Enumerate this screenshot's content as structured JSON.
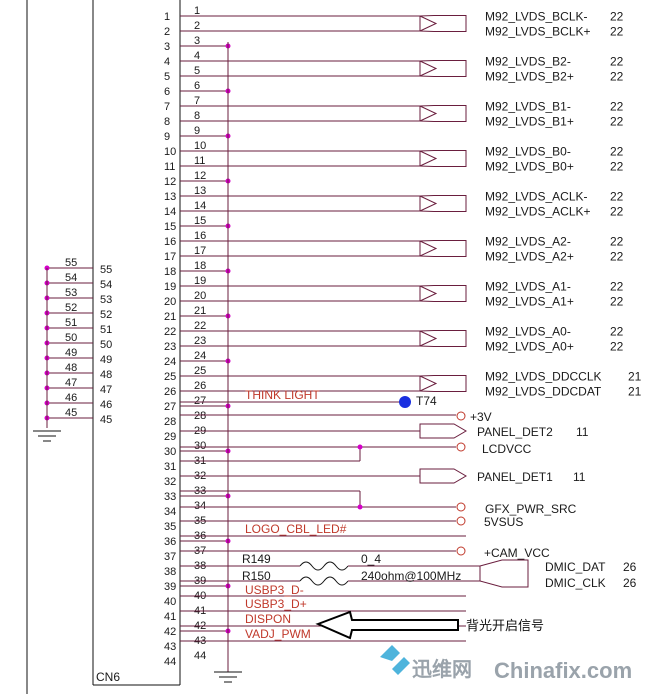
{
  "connector": {
    "ref": "CN6",
    "left_pins": [
      "55",
      "54",
      "53",
      "52",
      "51",
      "50",
      "49",
      "48",
      "47",
      "46",
      "45"
    ],
    "right_pins": [
      "1",
      "2",
      "3",
      "4",
      "5",
      "6",
      "7",
      "8",
      "9",
      "10",
      "11",
      "12",
      "13",
      "14",
      "15",
      "16",
      "17",
      "18",
      "19",
      "20",
      "21",
      "22",
      "23",
      "24",
      "25",
      "26",
      "27",
      "28",
      "29",
      "30",
      "31",
      "32",
      "33",
      "34",
      "35",
      "36",
      "37",
      "38",
      "39",
      "40",
      "41",
      "42",
      "43",
      "44"
    ]
  },
  "lvds_nets": [
    {
      "name": "M92_LVDS_BCLK-",
      "page": "22"
    },
    {
      "name": "M92_LVDS_BCLK+",
      "page": "22"
    },
    {
      "name": "M92_LVDS_B2-",
      "page": "22"
    },
    {
      "name": "M92_LVDS_B2+",
      "page": "22"
    },
    {
      "name": "M92_LVDS_B1-",
      "page": "22"
    },
    {
      "name": "M92_LVDS_B1+",
      "page": "22"
    },
    {
      "name": "M92_LVDS_B0-",
      "page": "22"
    },
    {
      "name": "M92_LVDS_B0+",
      "page": "22"
    },
    {
      "name": "M92_LVDS_ACLK-",
      "page": "22"
    },
    {
      "name": "M92_LVDS_ACLK+",
      "page": "22"
    },
    {
      "name": "M92_LVDS_A2-",
      "page": "22"
    },
    {
      "name": "M92_LVDS_A2+",
      "page": "22"
    },
    {
      "name": "M92_LVDS_A1-",
      "page": "22"
    },
    {
      "name": "M92_LVDS_A1+",
      "page": "22"
    },
    {
      "name": "M92_LVDS_A0-",
      "page": "22"
    },
    {
      "name": "M92_LVDS_A0+",
      "page": "22"
    },
    {
      "name": "M92_LVDS_DDCCLK",
      "page": "21"
    },
    {
      "name": "M92_LVDS_DDCDAT",
      "page": "21"
    }
  ],
  "signals": {
    "think_light": "THINK LIGHT",
    "testpoint": "T74",
    "v3": "+3V",
    "panel_det2": "PANEL_DET2",
    "panel_det2_page": "11",
    "lcdvcc": "LCDVCC",
    "panel_det1": "PANEL_DET1",
    "panel_det1_page": "11",
    "gfx_pwr_src": "GFX_PWR_SRC",
    "v5vsus": "5VSUS",
    "logo_cbl_led": "LOGO_CBL_LED#",
    "cam_vcc": "+CAM_VCC",
    "r149": "R149",
    "r149_val": "0_4",
    "r150": "R150",
    "r150_val": "240ohm@100MHz",
    "dmic_dat": "DMIC_DAT",
    "dmic_dat_page": "26",
    "dmic_clk": "DMIC_CLK",
    "dmic_clk_page": "26",
    "usbp3_dm": "USBP3_D-",
    "usbp3_dp": "USBP3_D+",
    "dispon": "DISPON",
    "vadj_pwm": "VADJ_PWM"
  },
  "annotation": {
    "dispon_note": "背光开启信号"
  },
  "watermark": {
    "cn": "迅维网",
    "en": "Chinafix.com"
  },
  "colors": {
    "wire": "#6a1e3e",
    "junction": "#d400c8",
    "red_label": "#c0392b",
    "testpoint": "#1a2fe0"
  }
}
